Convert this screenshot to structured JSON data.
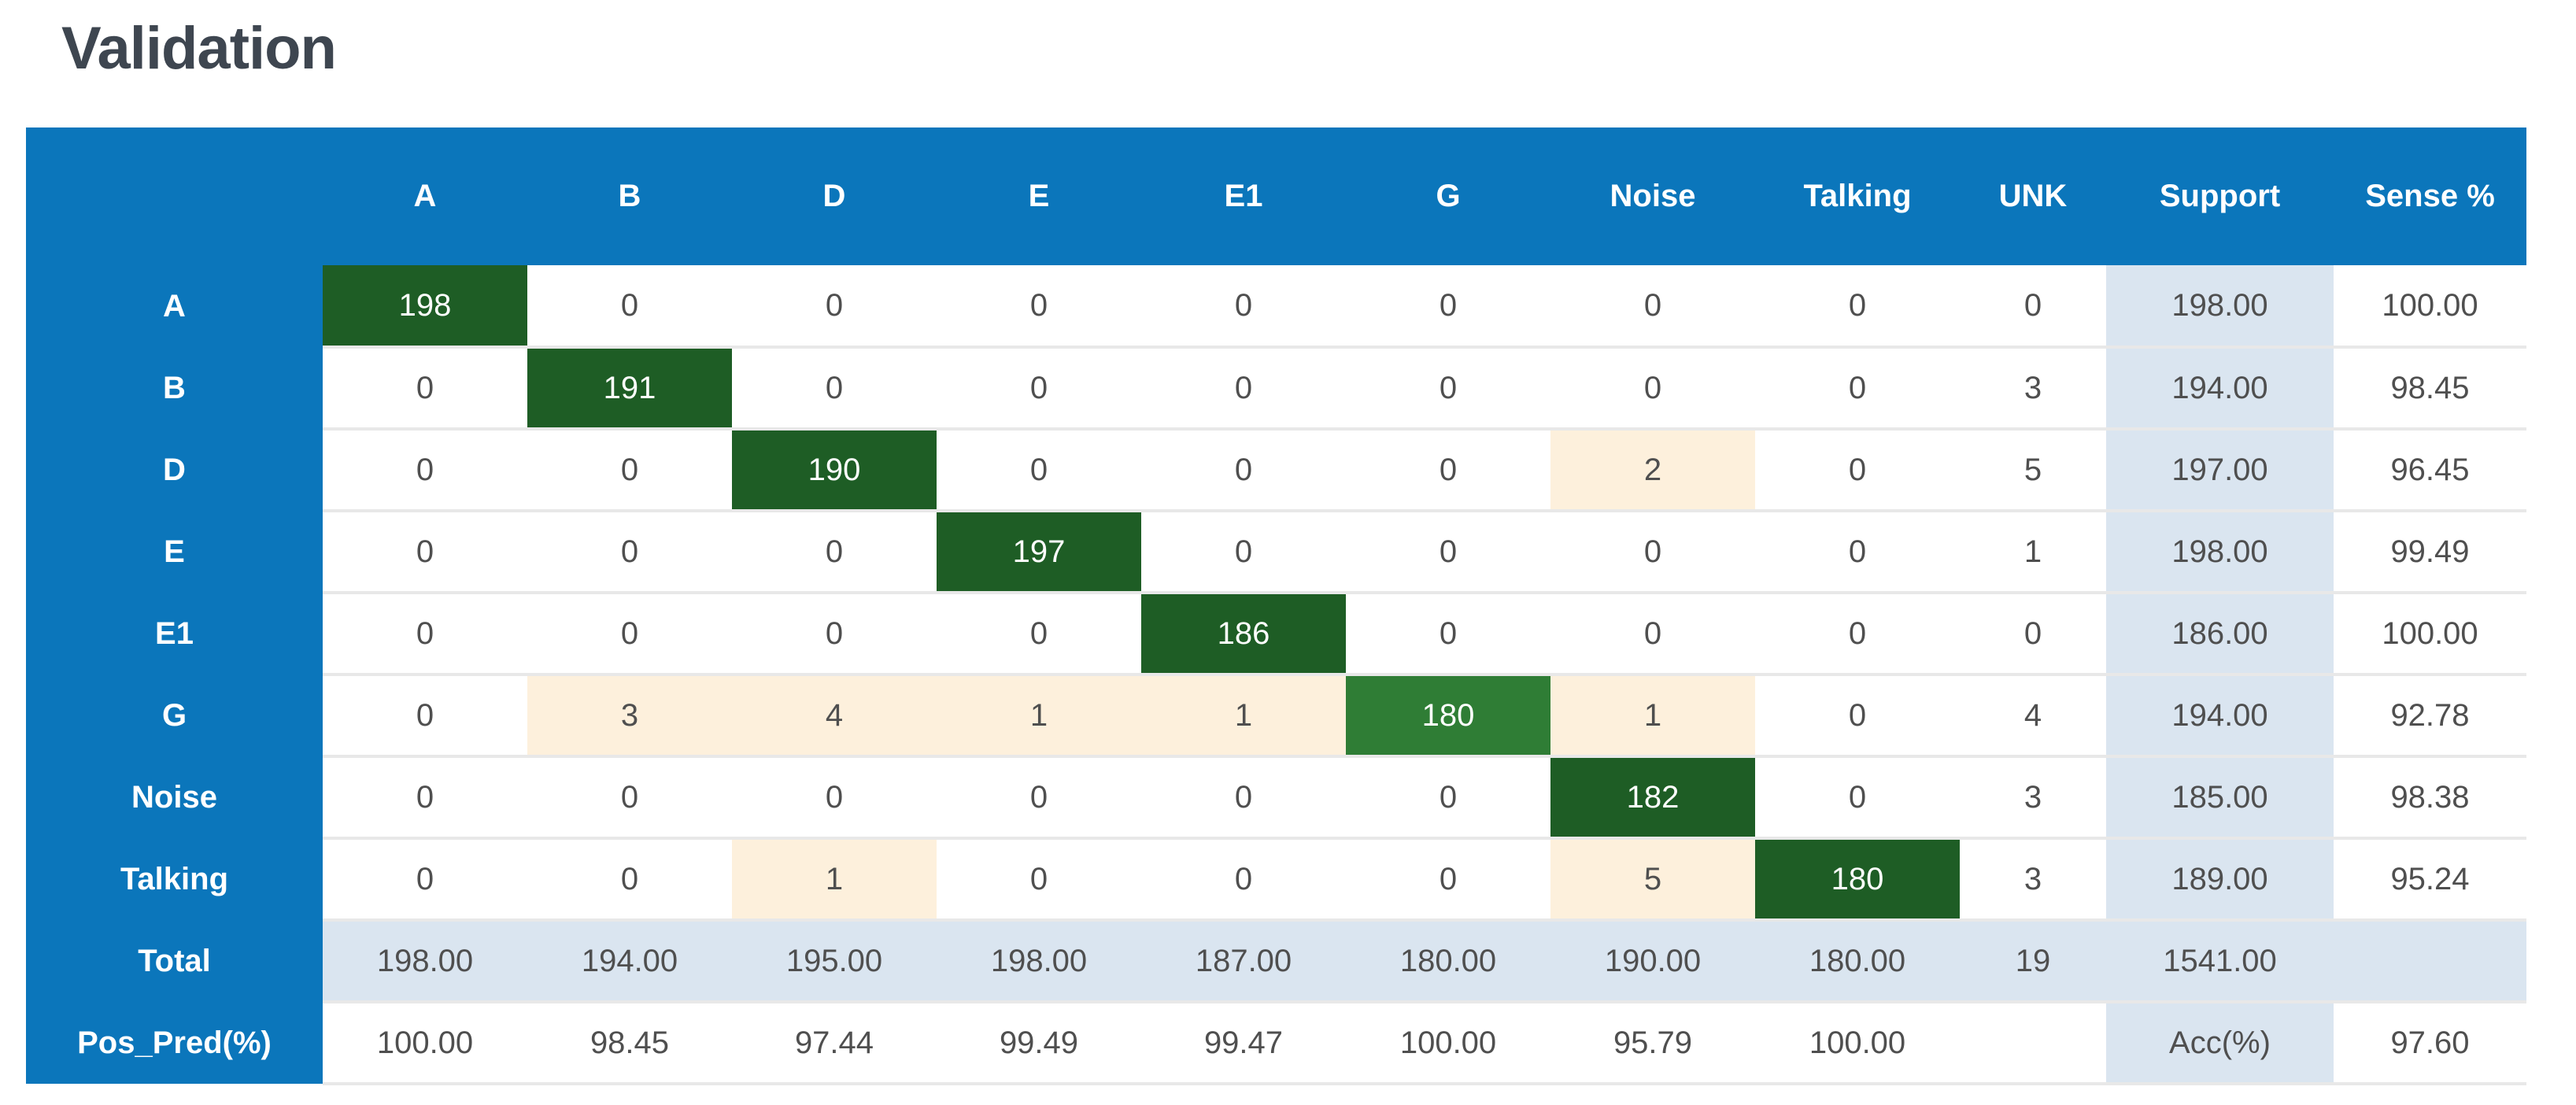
{
  "title": "Validation",
  "colors": {
    "header_blue": "#0b76bb",
    "diag_green": "#1e5d25",
    "diag_green_light": "#2f7d35",
    "error_cream": "#fdf0dc",
    "support_light_blue": "#dae5f0",
    "value_text": "#4f4f4f",
    "title_text": "#3e4650",
    "row_separator": "#e8e8e8"
  },
  "table": {
    "column_headers": [
      "",
      "A",
      "B",
      "D",
      "E",
      "E1",
      "G",
      "Noise",
      "Talking",
      "UNK",
      "Support",
      "Sense %"
    ],
    "rows": [
      {
        "label": "A",
        "cells": [
          {
            "v": "198",
            "hl": "diag"
          },
          {
            "v": "0"
          },
          {
            "v": "0"
          },
          {
            "v": "0"
          },
          {
            "v": "0"
          },
          {
            "v": "0"
          },
          {
            "v": "0"
          },
          {
            "v": "0"
          },
          {
            "v": "0"
          },
          {
            "v": "198.00",
            "hl": "support"
          },
          {
            "v": "100.00"
          }
        ]
      },
      {
        "label": "B",
        "cells": [
          {
            "v": "0"
          },
          {
            "v": "191",
            "hl": "diag"
          },
          {
            "v": "0"
          },
          {
            "v": "0"
          },
          {
            "v": "0"
          },
          {
            "v": "0"
          },
          {
            "v": "0"
          },
          {
            "v": "0"
          },
          {
            "v": "3"
          },
          {
            "v": "194.00",
            "hl": "support"
          },
          {
            "v": "98.45"
          }
        ]
      },
      {
        "label": "D",
        "cells": [
          {
            "v": "0"
          },
          {
            "v": "0"
          },
          {
            "v": "190",
            "hl": "diag"
          },
          {
            "v": "0"
          },
          {
            "v": "0"
          },
          {
            "v": "0"
          },
          {
            "v": "2",
            "hl": "warn"
          },
          {
            "v": "0"
          },
          {
            "v": "5"
          },
          {
            "v": "197.00",
            "hl": "support"
          },
          {
            "v": "96.45"
          }
        ]
      },
      {
        "label": "E",
        "cells": [
          {
            "v": "0"
          },
          {
            "v": "0"
          },
          {
            "v": "0"
          },
          {
            "v": "197",
            "hl": "diag"
          },
          {
            "v": "0"
          },
          {
            "v": "0"
          },
          {
            "v": "0"
          },
          {
            "v": "0"
          },
          {
            "v": "1"
          },
          {
            "v": "198.00",
            "hl": "support"
          },
          {
            "v": "99.49"
          }
        ]
      },
      {
        "label": "E1",
        "cells": [
          {
            "v": "0"
          },
          {
            "v": "0"
          },
          {
            "v": "0"
          },
          {
            "v": "0"
          },
          {
            "v": "186",
            "hl": "diag"
          },
          {
            "v": "0"
          },
          {
            "v": "0"
          },
          {
            "v": "0"
          },
          {
            "v": "0"
          },
          {
            "v": "186.00",
            "hl": "support"
          },
          {
            "v": "100.00"
          }
        ]
      },
      {
        "label": "G",
        "cells": [
          {
            "v": "0"
          },
          {
            "v": "3",
            "hl": "warn"
          },
          {
            "v": "4",
            "hl": "warn"
          },
          {
            "v": "1",
            "hl": "warn"
          },
          {
            "v": "1",
            "hl": "warn"
          },
          {
            "v": "180",
            "hl": "diagLight"
          },
          {
            "v": "1",
            "hl": "warn"
          },
          {
            "v": "0"
          },
          {
            "v": "4"
          },
          {
            "v": "194.00",
            "hl": "support"
          },
          {
            "v": "92.78"
          }
        ]
      },
      {
        "label": "Noise",
        "cells": [
          {
            "v": "0"
          },
          {
            "v": "0"
          },
          {
            "v": "0"
          },
          {
            "v": "0"
          },
          {
            "v": "0"
          },
          {
            "v": "0"
          },
          {
            "v": "182",
            "hl": "diag"
          },
          {
            "v": "0"
          },
          {
            "v": "3"
          },
          {
            "v": "185.00",
            "hl": "support"
          },
          {
            "v": "98.38"
          }
        ]
      },
      {
        "label": "Talking",
        "cells": [
          {
            "v": "0"
          },
          {
            "v": "0"
          },
          {
            "v": "1",
            "hl": "warn"
          },
          {
            "v": "0"
          },
          {
            "v": "0"
          },
          {
            "v": "0"
          },
          {
            "v": "5",
            "hl": "warn"
          },
          {
            "v": "180",
            "hl": "diag"
          },
          {
            "v": "3"
          },
          {
            "v": "189.00",
            "hl": "support"
          },
          {
            "v": "95.24"
          }
        ]
      },
      {
        "label": "Total",
        "row_style": "total",
        "cells": [
          {
            "v": "198.00"
          },
          {
            "v": "194.00"
          },
          {
            "v": "195.00"
          },
          {
            "v": "198.00"
          },
          {
            "v": "187.00"
          },
          {
            "v": "180.00"
          },
          {
            "v": "190.00"
          },
          {
            "v": "180.00"
          },
          {
            "v": "19"
          },
          {
            "v": "1541.00"
          },
          {
            "v": ""
          }
        ]
      },
      {
        "label": "Pos_Pred(%)",
        "cells": [
          {
            "v": "100.00"
          },
          {
            "v": "98.45"
          },
          {
            "v": "97.44"
          },
          {
            "v": "99.49"
          },
          {
            "v": "99.47"
          },
          {
            "v": "100.00"
          },
          {
            "v": "95.79"
          },
          {
            "v": "100.00"
          },
          {
            "v": ""
          },
          {
            "v": "Acc(%)",
            "hl": "support"
          },
          {
            "v": "97.60"
          }
        ]
      }
    ]
  },
  "chart_data": {
    "type": "heatmap",
    "title": "Validation",
    "x_labels": [
      "A",
      "B",
      "D",
      "E",
      "E1",
      "G",
      "Noise",
      "Talking",
      "UNK"
    ],
    "y_labels": [
      "A",
      "B",
      "D",
      "E",
      "E1",
      "G",
      "Noise",
      "Talking"
    ],
    "matrix": [
      [
        198,
        0,
        0,
        0,
        0,
        0,
        0,
        0,
        0
      ],
      [
        0,
        191,
        0,
        0,
        0,
        0,
        0,
        0,
        3
      ],
      [
        0,
        0,
        190,
        0,
        0,
        0,
        2,
        0,
        5
      ],
      [
        0,
        0,
        0,
        197,
        0,
        0,
        0,
        0,
        1
      ],
      [
        0,
        0,
        0,
        0,
        186,
        0,
        0,
        0,
        0
      ],
      [
        0,
        3,
        4,
        1,
        1,
        180,
        1,
        0,
        4
      ],
      [
        0,
        0,
        0,
        0,
        0,
        0,
        182,
        0,
        3
      ],
      [
        0,
        0,
        1,
        0,
        0,
        0,
        5,
        180,
        3
      ]
    ],
    "support": [
      198.0,
      194.0,
      197.0,
      198.0,
      186.0,
      194.0,
      185.0,
      189.0
    ],
    "sense_pct": [
      100.0,
      98.45,
      96.45,
      99.49,
      100.0,
      92.78,
      98.38,
      95.24
    ],
    "column_totals": [
      198.0,
      194.0,
      195.0,
      198.0,
      187.0,
      180.0,
      190.0,
      180.0,
      19
    ],
    "support_total": 1541.0,
    "pos_pred_pct": [
      100.0,
      98.45,
      97.44,
      99.49,
      99.47,
      100.0,
      95.79,
      100.0
    ],
    "accuracy_pct": 97.6,
    "legend_position": "none",
    "grid": false
  }
}
